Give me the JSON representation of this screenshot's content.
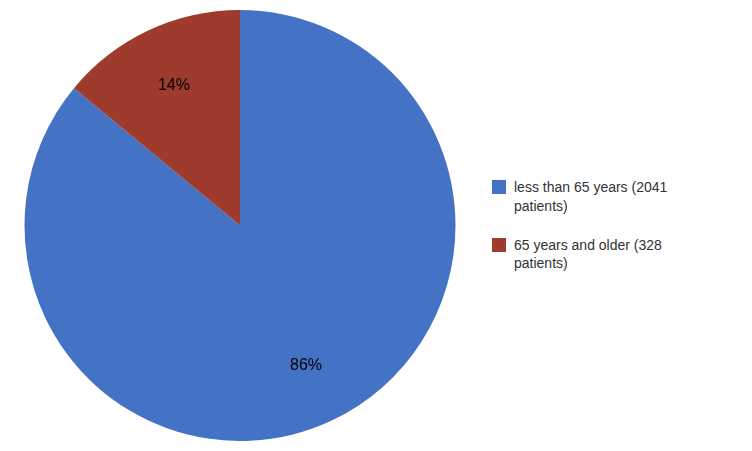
{
  "chart_data": {
    "type": "pie",
    "categories": [
      "less than 65 years (2041\npatients)",
      "65 years and older (328\npatients)"
    ],
    "values": [
      86,
      14
    ],
    "value_labels": [
      "86%",
      "14%"
    ],
    "colors": [
      "#4472C4",
      "#9E3B2C"
    ],
    "data_labels": true,
    "legend": "right"
  }
}
